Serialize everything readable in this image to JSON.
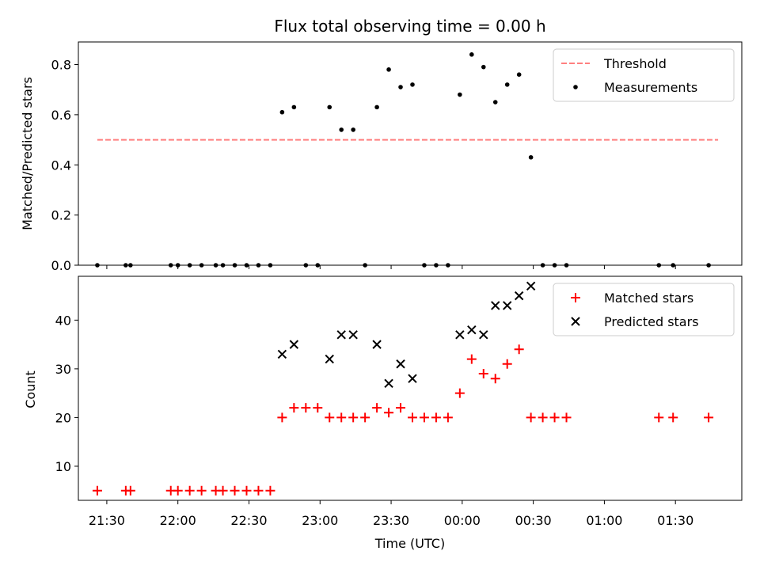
{
  "chart_data": [
    {
      "type": "scatter",
      "title": "Flux total observing time = 0.00 h",
      "xlabel": "",
      "ylabel": "Matched/Predicted stars",
      "xlim": [
        "21:18",
        "01:58"
      ],
      "ylim": [
        0,
        0.89
      ],
      "yticks": [
        "0.0",
        "0.2",
        "0.4",
        "0.6",
        "0.8"
      ],
      "xticks": [
        "21:30",
        "22:00",
        "22:30",
        "23:00",
        "23:30",
        "00:00",
        "00:30",
        "01:00",
        "01:30"
      ],
      "legend_position": "top-right",
      "series": [
        {
          "name": "Threshold",
          "kind": "dashed-line",
          "color": "#ff7f7f",
          "points": [
            [
              "21:26",
              0.5
            ],
            [
              "01:48",
              0.5
            ]
          ]
        },
        {
          "name": "Measurements",
          "kind": "dot",
          "color": "#000000",
          "points": [
            [
              "21:26",
              0.0
            ],
            [
              "21:38",
              0.0
            ],
            [
              "21:40",
              0.0
            ],
            [
              "21:57",
              0.0
            ],
            [
              "22:00",
              0.0
            ],
            [
              "22:05",
              0.0
            ],
            [
              "22:10",
              0.0
            ],
            [
              "22:16",
              0.0
            ],
            [
              "22:19",
              0.0
            ],
            [
              "22:24",
              0.0
            ],
            [
              "22:29",
              0.0
            ],
            [
              "22:34",
              0.0
            ],
            [
              "22:39",
              0.0
            ],
            [
              "22:44",
              0.61
            ],
            [
              "22:49",
              0.63
            ],
            [
              "22:54",
              0.0
            ],
            [
              "22:59",
              0.0
            ],
            [
              "23:04",
              0.63
            ],
            [
              "23:09",
              0.54
            ],
            [
              "23:14",
              0.54
            ],
            [
              "23:19",
              0.0
            ],
            [
              "23:24",
              0.63
            ],
            [
              "23:29",
              0.78
            ],
            [
              "23:34",
              0.71
            ],
            [
              "23:39",
              0.72
            ],
            [
              "23:44",
              0.0
            ],
            [
              "23:49",
              0.0
            ],
            [
              "23:54",
              0.0
            ],
            [
              "23:59",
              0.68
            ],
            [
              "00:04",
              0.84
            ],
            [
              "00:09",
              0.79
            ],
            [
              "00:14",
              0.65
            ],
            [
              "00:19",
              0.72
            ],
            [
              "00:24",
              0.76
            ],
            [
              "00:29",
              0.43
            ],
            [
              "00:34",
              0.0
            ],
            [
              "00:39",
              0.0
            ],
            [
              "00:44",
              0.0
            ],
            [
              "01:23",
              0.0
            ],
            [
              "01:29",
              0.0
            ],
            [
              "01:44",
              0.0
            ]
          ]
        }
      ]
    },
    {
      "type": "scatter",
      "title": "",
      "xlabel": "Time (UTC)",
      "ylabel": "Count",
      "xlim": [
        "21:18",
        "01:58"
      ],
      "ylim": [
        3,
        49
      ],
      "yticks": [
        "10",
        "20",
        "30",
        "40"
      ],
      "xticks": [
        "21:30",
        "22:00",
        "22:30",
        "23:00",
        "23:30",
        "00:00",
        "00:30",
        "01:00",
        "01:30"
      ],
      "legend_position": "top-right",
      "series": [
        {
          "name": "Matched stars",
          "kind": "plus",
          "color": "#ff0000",
          "points": [
            [
              "21:26",
              5
            ],
            [
              "21:38",
              5
            ],
            [
              "21:40",
              5
            ],
            [
              "21:57",
              5
            ],
            [
              "22:00",
              5
            ],
            [
              "22:05",
              5
            ],
            [
              "22:10",
              5
            ],
            [
              "22:16",
              5
            ],
            [
              "22:19",
              5
            ],
            [
              "22:24",
              5
            ],
            [
              "22:29",
              5
            ],
            [
              "22:34",
              5
            ],
            [
              "22:39",
              5
            ],
            [
              "22:44",
              20
            ],
            [
              "22:49",
              22
            ],
            [
              "22:54",
              22
            ],
            [
              "22:59",
              22
            ],
            [
              "23:04",
              20
            ],
            [
              "23:09",
              20
            ],
            [
              "23:14",
              20
            ],
            [
              "23:19",
              20
            ],
            [
              "23:24",
              22
            ],
            [
              "23:29",
              21
            ],
            [
              "23:34",
              22
            ],
            [
              "23:39",
              20
            ],
            [
              "23:44",
              20
            ],
            [
              "23:49",
              20
            ],
            [
              "23:54",
              20
            ],
            [
              "23:59",
              25
            ],
            [
              "00:04",
              32
            ],
            [
              "00:09",
              29
            ],
            [
              "00:14",
              28
            ],
            [
              "00:19",
              31
            ],
            [
              "00:24",
              34
            ],
            [
              "00:29",
              20
            ],
            [
              "00:34",
              20
            ],
            [
              "00:39",
              20
            ],
            [
              "00:44",
              20
            ],
            [
              "01:23",
              20
            ],
            [
              "01:29",
              20
            ],
            [
              "01:44",
              20
            ]
          ]
        },
        {
          "name": "Predicted stars",
          "kind": "cross",
          "color": "#000000",
          "points": [
            [
              "22:44",
              33
            ],
            [
              "22:49",
              35
            ],
            [
              "23:04",
              32
            ],
            [
              "23:09",
              37
            ],
            [
              "23:14",
              37
            ],
            [
              "23:24",
              35
            ],
            [
              "23:29",
              27
            ],
            [
              "23:34",
              31
            ],
            [
              "23:39",
              28
            ],
            [
              "23:59",
              37
            ],
            [
              "00:04",
              38
            ],
            [
              "00:09",
              37
            ],
            [
              "00:14",
              43
            ],
            [
              "00:19",
              43
            ],
            [
              "00:24",
              45
            ],
            [
              "00:29",
              47
            ]
          ]
        }
      ]
    }
  ]
}
